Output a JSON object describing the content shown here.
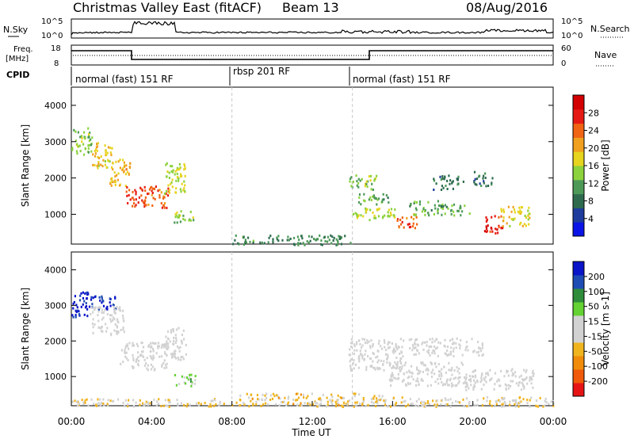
{
  "header": {
    "title": "Christmas Valley East (fitACF)",
    "beam": "Beam 13",
    "date": "08/Aug/2016"
  },
  "top_panels": {
    "nsky_label": "N.Sky",
    "nsearch_label": "N.Search",
    "nsky_ticks": [
      "10^5",
      "10^0"
    ],
    "freq_label": "Freq.",
    "freq_unit": "[MHz]",
    "freq_ticks": [
      "18",
      "8"
    ],
    "nave_label": "Nave",
    "nave_ticks": [
      "60",
      "0"
    ],
    "cpid_label": "CPID",
    "modes": [
      {
        "label": "normal (fast) 151 RF",
        "start": 0,
        "end": 8
      },
      {
        "label": "rbsp 201 RF",
        "start": 8,
        "end": 14
      },
      {
        "label": "normal (fast) 151 RF",
        "start": 14,
        "end": 24
      }
    ]
  },
  "colors": {
    "power": [
      "#0a14e6",
      "#1e3c9c",
      "#2e6b4e",
      "#4d9a58",
      "#8cd23c",
      "#e6d41e",
      "#f0a01e",
      "#f06414",
      "#e61a14",
      "#d20000"
    ],
    "velocity": [
      "#e61414",
      "#f05a0a",
      "#f08c0a",
      "#f0b41e",
      "#d2d2d2",
      "#d2d2d2",
      "#64d232",
      "#2e8c3a",
      "#1e4cb4",
      "#0a14c8"
    ]
  },
  "chart_data": [
    {
      "type": "heatmap",
      "name": "power",
      "xlabel": "",
      "ylabel": "Slant Range [km]",
      "colorbar_label": "Power [dB]",
      "colorbar_ticks": [
        "28",
        "24",
        "20",
        "16",
        "12",
        "8",
        "4"
      ],
      "colorbar_range": [
        0,
        32
      ],
      "xlim": [
        0,
        24
      ],
      "ylim": [
        180,
        4500
      ],
      "yticks": [
        "4000",
        "3000",
        "2000",
        "1000"
      ],
      "patches": [
        {
          "t0": 0.0,
          "t1": 1.0,
          "r0": 2600,
          "r1": 3400,
          "v": 14
        },
        {
          "t0": 0.9,
          "t1": 2.0,
          "r0": 2300,
          "r1": 3000,
          "v": 18
        },
        {
          "t0": 1.9,
          "t1": 2.9,
          "r0": 1800,
          "r1": 2600,
          "v": 20
        },
        {
          "t0": 2.7,
          "t1": 3.7,
          "r0": 1200,
          "r1": 1800,
          "v": 26
        },
        {
          "t0": 3.6,
          "t1": 4.8,
          "r0": 1200,
          "r1": 1800,
          "v": 24
        },
        {
          "t0": 4.6,
          "t1": 5.7,
          "r0": 1600,
          "r1": 2500,
          "v": 16
        },
        {
          "t0": 5.1,
          "t1": 6.2,
          "r0": 800,
          "r1": 1150,
          "v": 14
        },
        {
          "t0": 13.8,
          "t1": 15.2,
          "r0": 1700,
          "r1": 2100,
          "v": 14
        },
        {
          "t0": 14.2,
          "t1": 15.8,
          "r0": 1300,
          "r1": 1600,
          "v": 12
        },
        {
          "t0": 14.0,
          "t1": 16.2,
          "r0": 850,
          "r1": 1200,
          "v": 16
        },
        {
          "t0": 16.2,
          "t1": 17.2,
          "r0": 650,
          "r1": 1050,
          "v": 24
        },
        {
          "t0": 16.8,
          "t1": 18.5,
          "r0": 1000,
          "r1": 1400,
          "v": 12
        },
        {
          "t0": 18.3,
          "t1": 19.8,
          "r0": 1000,
          "r1": 1300,
          "v": 12
        },
        {
          "t0": 18.0,
          "t1": 19.5,
          "r0": 1700,
          "r1": 2100,
          "v": 8
        },
        {
          "t0": 20.5,
          "t1": 21.5,
          "r0": 500,
          "r1": 1000,
          "v": 28
        },
        {
          "t0": 21.3,
          "t1": 22.8,
          "r0": 700,
          "r1": 1250,
          "v": 18
        },
        {
          "t0": 20.0,
          "t1": 21.0,
          "r0": 1800,
          "r1": 2200,
          "v": 8
        },
        {
          "t0": 8.0,
          "t1": 14.0,
          "r0": 180,
          "r1": 450,
          "v": 10
        }
      ]
    },
    {
      "type": "heatmap",
      "name": "velocity",
      "xlabel": "Time UT",
      "ylabel": "Slant Range [km]",
      "colorbar_label": "Velocity [m s-1]",
      "colorbar_ticks": [
        "200",
        "100",
        "50",
        "15",
        "-15",
        "-50",
        "-100",
        "-200"
      ],
      "colorbar_range": [
        -250,
        250
      ],
      "xlim": [
        0,
        24
      ],
      "ylim": [
        180,
        4500
      ],
      "xticks": [
        "00:00",
        "04:00",
        "08:00",
        "12:00",
        "16:00",
        "20:00",
        "00:00"
      ],
      "yticks": [
        "4000",
        "3000",
        "2000",
        "1000"
      ],
      "patches": [
        {
          "t0": 0.0,
          "t1": 1.0,
          "r0": 2700,
          "r1": 3400,
          "v": 220
        },
        {
          "t0": 0.9,
          "t1": 2.2,
          "r0": 2900,
          "r1": 3300,
          "v": 200
        },
        {
          "t0": 0.9,
          "t1": 2.6,
          "r0": 2200,
          "r1": 3000,
          "v": 0
        },
        {
          "t0": 2.4,
          "t1": 4.8,
          "r0": 1200,
          "r1": 2000,
          "v": 0
        },
        {
          "t0": 4.6,
          "t1": 5.7,
          "r0": 1500,
          "r1": 2400,
          "v": 0
        },
        {
          "t0": 5.1,
          "t1": 6.2,
          "r0": 750,
          "r1": 1100,
          "v": 60
        },
        {
          "t0": 0.0,
          "t1": 8.0,
          "r0": 180,
          "r1": 400,
          "v": -40
        },
        {
          "t0": 8.0,
          "t1": 15.5,
          "r0": 180,
          "r1": 550,
          "v": -60
        },
        {
          "t0": 15.5,
          "t1": 24.0,
          "r0": 180,
          "r1": 450,
          "v": -40
        },
        {
          "t0": 13.8,
          "t1": 16.5,
          "r0": 1200,
          "r1": 2100,
          "v": 0
        },
        {
          "t0": 15.8,
          "t1": 19.5,
          "r0": 750,
          "r1": 1450,
          "v": 0
        },
        {
          "t0": 19.5,
          "t1": 23.0,
          "r0": 650,
          "r1": 1250,
          "v": 0
        },
        {
          "t0": 16.8,
          "t1": 20.5,
          "r0": 1600,
          "r1": 2100,
          "v": 0
        }
      ]
    }
  ]
}
